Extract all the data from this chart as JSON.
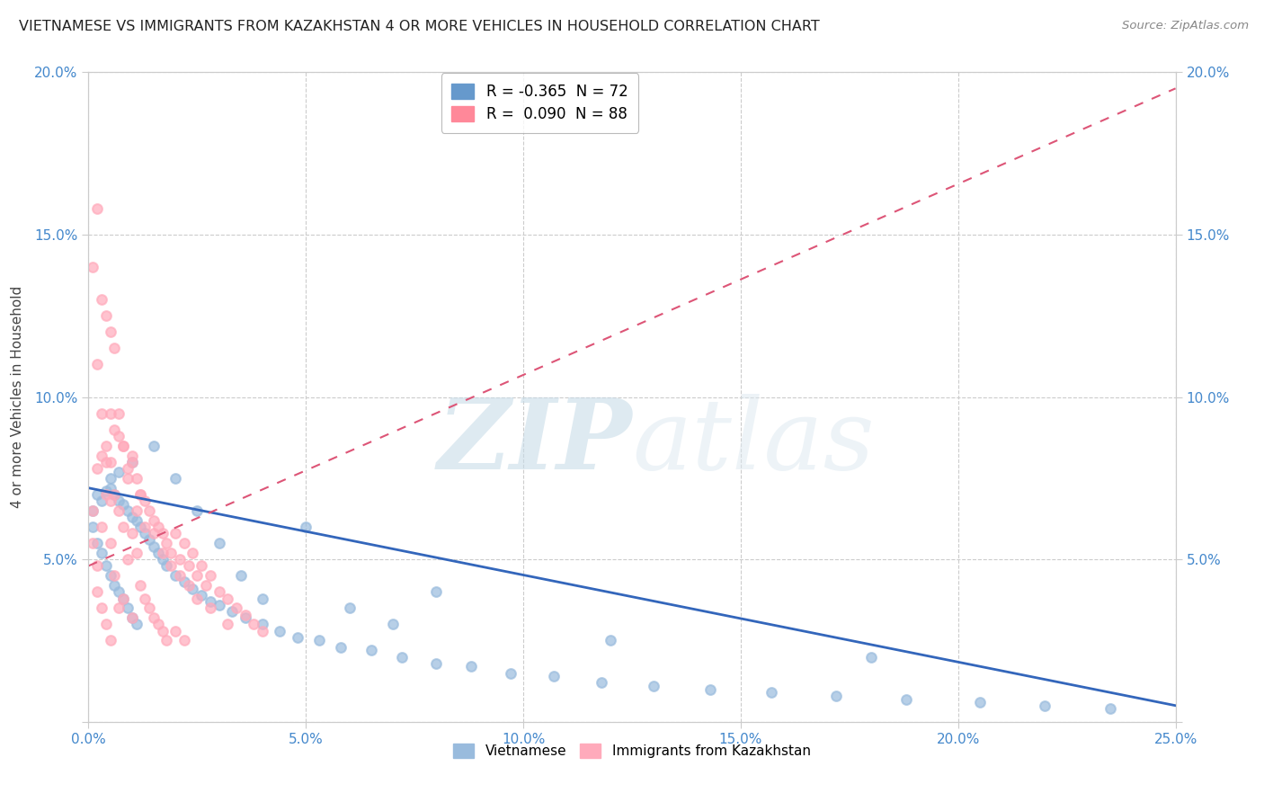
{
  "title": "VIETNAMESE VS IMMIGRANTS FROM KAZAKHSTAN 4 OR MORE VEHICLES IN HOUSEHOLD CORRELATION CHART",
  "source": "Source: ZipAtlas.com",
  "ylabel": "4 or more Vehicles in Household",
  "watermark_zip": "ZIP",
  "watermark_atlas": "atlas",
  "legend1_label": "R = -0.365  N = 72",
  "legend2_label": "R =  0.090  N = 88",
  "legend1_color": "#6699cc",
  "legend2_color": "#ff8899",
  "trendline1_color": "#3366bb",
  "trendline2_color": "#dd5577",
  "scatter1_color": "#99bbdd",
  "scatter2_color": "#ffaabb",
  "xlim": [
    0.0,
    0.25
  ],
  "ylim": [
    0.0,
    0.2
  ],
  "xtick_labels": [
    "0.0%",
    "5.0%",
    "10.0%",
    "15.0%",
    "20.0%",
    "25.0%"
  ],
  "xtick_vals": [
    0.0,
    0.05,
    0.1,
    0.15,
    0.2,
    0.25
  ],
  "ytick_labels": [
    "",
    "5.0%",
    "10.0%",
    "15.0%",
    "20.0%"
  ],
  "ytick_vals": [
    0.0,
    0.05,
    0.1,
    0.15,
    0.2
  ],
  "background": "#ffffff",
  "grid_color": "#dddddd",
  "trendline1_x0": 0.0,
  "trendline1_y0": 0.072,
  "trendline1_x1": 0.25,
  "trendline1_y1": 0.005,
  "trendline2_x0": 0.0,
  "trendline2_y0": 0.048,
  "trendline2_x1": 0.25,
  "trendline2_y1": 0.195,
  "viet_x": [
    0.001,
    0.001,
    0.002,
    0.002,
    0.003,
    0.003,
    0.004,
    0.004,
    0.005,
    0.005,
    0.006,
    0.006,
    0.007,
    0.007,
    0.008,
    0.008,
    0.009,
    0.009,
    0.01,
    0.01,
    0.011,
    0.011,
    0.012,
    0.013,
    0.014,
    0.015,
    0.016,
    0.017,
    0.018,
    0.02,
    0.022,
    0.024,
    0.026,
    0.028,
    0.03,
    0.033,
    0.036,
    0.04,
    0.044,
    0.048,
    0.053,
    0.058,
    0.065,
    0.072,
    0.08,
    0.088,
    0.097,
    0.107,
    0.118,
    0.13,
    0.143,
    0.157,
    0.172,
    0.188,
    0.205,
    0.22,
    0.235,
    0.005,
    0.007,
    0.01,
    0.015,
    0.02,
    0.025,
    0.03,
    0.035,
    0.04,
    0.05,
    0.06,
    0.07,
    0.08,
    0.12,
    0.18
  ],
  "viet_y": [
    0.065,
    0.06,
    0.07,
    0.055,
    0.068,
    0.052,
    0.071,
    0.048,
    0.072,
    0.045,
    0.07,
    0.042,
    0.068,
    0.04,
    0.067,
    0.038,
    0.065,
    0.035,
    0.063,
    0.032,
    0.062,
    0.03,
    0.06,
    0.058,
    0.056,
    0.054,
    0.052,
    0.05,
    0.048,
    0.045,
    0.043,
    0.041,
    0.039,
    0.037,
    0.036,
    0.034,
    0.032,
    0.03,
    0.028,
    0.026,
    0.025,
    0.023,
    0.022,
    0.02,
    0.018,
    0.017,
    0.015,
    0.014,
    0.012,
    0.011,
    0.01,
    0.009,
    0.008,
    0.007,
    0.006,
    0.005,
    0.004,
    0.075,
    0.077,
    0.08,
    0.085,
    0.075,
    0.065,
    0.055,
    0.045,
    0.038,
    0.06,
    0.035,
    0.03,
    0.04,
    0.025,
    0.02
  ],
  "kaz_x": [
    0.001,
    0.001,
    0.002,
    0.002,
    0.002,
    0.003,
    0.003,
    0.003,
    0.004,
    0.004,
    0.004,
    0.005,
    0.005,
    0.005,
    0.005,
    0.006,
    0.006,
    0.006,
    0.007,
    0.007,
    0.007,
    0.008,
    0.008,
    0.008,
    0.009,
    0.009,
    0.01,
    0.01,
    0.01,
    0.011,
    0.011,
    0.012,
    0.012,
    0.013,
    0.013,
    0.014,
    0.014,
    0.015,
    0.015,
    0.016,
    0.016,
    0.017,
    0.017,
    0.018,
    0.018,
    0.019,
    0.02,
    0.02,
    0.021,
    0.022,
    0.022,
    0.023,
    0.024,
    0.025,
    0.026,
    0.027,
    0.028,
    0.03,
    0.032,
    0.034,
    0.036,
    0.038,
    0.04,
    0.001,
    0.002,
    0.002,
    0.003,
    0.003,
    0.004,
    0.004,
    0.005,
    0.005,
    0.006,
    0.007,
    0.008,
    0.009,
    0.01,
    0.011,
    0.012,
    0.013,
    0.015,
    0.017,
    0.019,
    0.021,
    0.023,
    0.025,
    0.028,
    0.032
  ],
  "kaz_y": [
    0.065,
    0.055,
    0.078,
    0.048,
    0.04,
    0.082,
    0.06,
    0.035,
    0.085,
    0.07,
    0.03,
    0.095,
    0.08,
    0.055,
    0.025,
    0.09,
    0.07,
    0.045,
    0.088,
    0.065,
    0.035,
    0.085,
    0.06,
    0.038,
    0.078,
    0.05,
    0.082,
    0.058,
    0.032,
    0.075,
    0.052,
    0.07,
    0.042,
    0.068,
    0.038,
    0.065,
    0.035,
    0.062,
    0.032,
    0.06,
    0.03,
    0.058,
    0.028,
    0.055,
    0.025,
    0.052,
    0.058,
    0.028,
    0.05,
    0.055,
    0.025,
    0.048,
    0.052,
    0.045,
    0.048,
    0.042,
    0.045,
    0.04,
    0.038,
    0.035,
    0.033,
    0.03,
    0.028,
    0.14,
    0.158,
    0.11,
    0.13,
    0.095,
    0.125,
    0.08,
    0.12,
    0.068,
    0.115,
    0.095,
    0.085,
    0.075,
    0.08,
    0.065,
    0.07,
    0.06,
    0.058,
    0.052,
    0.048,
    0.045,
    0.042,
    0.038,
    0.035,
    0.03
  ]
}
